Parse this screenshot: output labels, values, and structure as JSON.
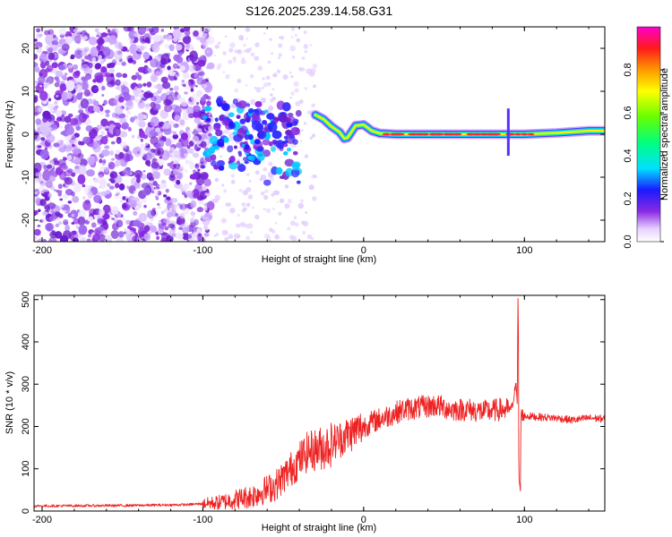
{
  "chart_data": [
    {
      "type": "heatmap",
      "title": "S126.2025.239.14.58.G31",
      "xlabel": "Height of straight line (km)",
      "ylabel": "Frequency (Hz)",
      "xlim": [
        -205,
        150
      ],
      "ylim": [
        -25,
        25
      ],
      "xticks": [
        -200,
        -100,
        0,
        100
      ],
      "yticks": [
        -20,
        -10,
        0,
        10,
        20
      ],
      "colorbar": {
        "label": "Normalized spectral amplitude",
        "range": [
          0.0,
          1.0
        ],
        "ticks": [
          0.0,
          0.2,
          0.4,
          0.6,
          0.8
        ]
      },
      "frequency_trace": [
        [
          -30,
          4.5
        ],
        [
          -25,
          3.5
        ],
        [
          -20,
          1.8
        ],
        [
          -15,
          0.5
        ],
        [
          -12,
          -1.0
        ],
        [
          -10,
          -0.8
        ],
        [
          -5,
          2.0
        ],
        [
          0,
          2.2
        ],
        [
          5,
          0.8
        ],
        [
          10,
          0.2
        ],
        [
          20,
          0.0
        ],
        [
          40,
          0.0
        ],
        [
          60,
          0.0
        ],
        [
          80,
          0.0
        ],
        [
          90,
          0.0
        ],
        [
          100,
          0.0
        ],
        [
          120,
          0.3
        ],
        [
          140,
          0.8
        ],
        [
          150,
          0.8
        ]
      ]
    },
    {
      "type": "line",
      "title": "",
      "xlabel": "Height of straight line (km)",
      "ylabel": "SNR (10 * v/v)",
      "xlim": [
        -205,
        150
      ],
      "ylim": [
        0,
        510
      ],
      "xticks": [
        -200,
        -100,
        0,
        100
      ],
      "yticks": [
        0,
        100,
        200,
        300,
        400,
        500
      ],
      "series": [
        {
          "name": "SNR",
          "color": "#ee2222",
          "x": [
            -205,
            -150,
            -110,
            -90,
            -70,
            -55,
            -45,
            -35,
            -25,
            -15,
            -5,
            5,
            15,
            25,
            35,
            45,
            55,
            65,
            75,
            85,
            92,
            95,
            96,
            97,
            98,
            100,
            110,
            120,
            130,
            140,
            150
          ],
          "y": [
            12,
            13,
            15,
            20,
            35,
            60,
            100,
            140,
            150,
            170,
            190,
            210,
            225,
            240,
            245,
            250,
            240,
            240,
            235,
            240,
            240,
            300,
            230,
            20,
            230,
            225,
            222,
            220,
            215,
            220,
            218
          ]
        }
      ]
    }
  ]
}
